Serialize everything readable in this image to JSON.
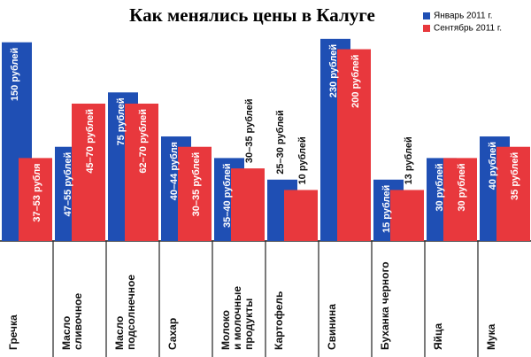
{
  "chart_data": {
    "type": "bar",
    "title": "Как менялись цены в Калуге",
    "categories": [
      [
        "Гречка"
      ],
      [
        "Масло",
        "сливочное"
      ],
      [
        "Масло",
        "подсолнечное"
      ],
      [
        "Сахар"
      ],
      [
        "Молоко",
        "и молочные",
        "продукты"
      ],
      [
        "Картофель"
      ],
      [
        "Свинина"
      ],
      [
        "Буханка черного"
      ],
      [
        "Яйца"
      ],
      [
        "Мука"
      ]
    ],
    "ylim": [
      0,
      240
    ],
    "series": [
      {
        "name": "Январь 2011 г.",
        "color": "#1f4fb4",
        "values": [
          230,
          109,
          172,
          121,
          96,
          71,
          234,
          71,
          96,
          121
        ],
        "labels": [
          "150 рублей",
          "47–55 рублей",
          "75 рублей",
          "40–44 рубля",
          "35–40 рублей",
          "25–30 рублей",
          "230 рублей",
          "15 рублей",
          "30 рублей",
          "40 рублей"
        ]
      },
      {
        "name": "Сентябрь 2011 г.",
        "color": "#e8383d",
        "values": [
          96,
          159,
          159,
          109,
          84,
          59,
          222,
          59,
          96,
          109
        ],
        "labels": [
          "37–53 рубля",
          "45–70 рублей",
          "62–70 рублей",
          "30–35 рублей",
          "30–35 рублей",
          "10 рублей",
          "200 рублей",
          "13 рублей",
          "30 рублей",
          "35 рублей"
        ]
      }
    ]
  }
}
